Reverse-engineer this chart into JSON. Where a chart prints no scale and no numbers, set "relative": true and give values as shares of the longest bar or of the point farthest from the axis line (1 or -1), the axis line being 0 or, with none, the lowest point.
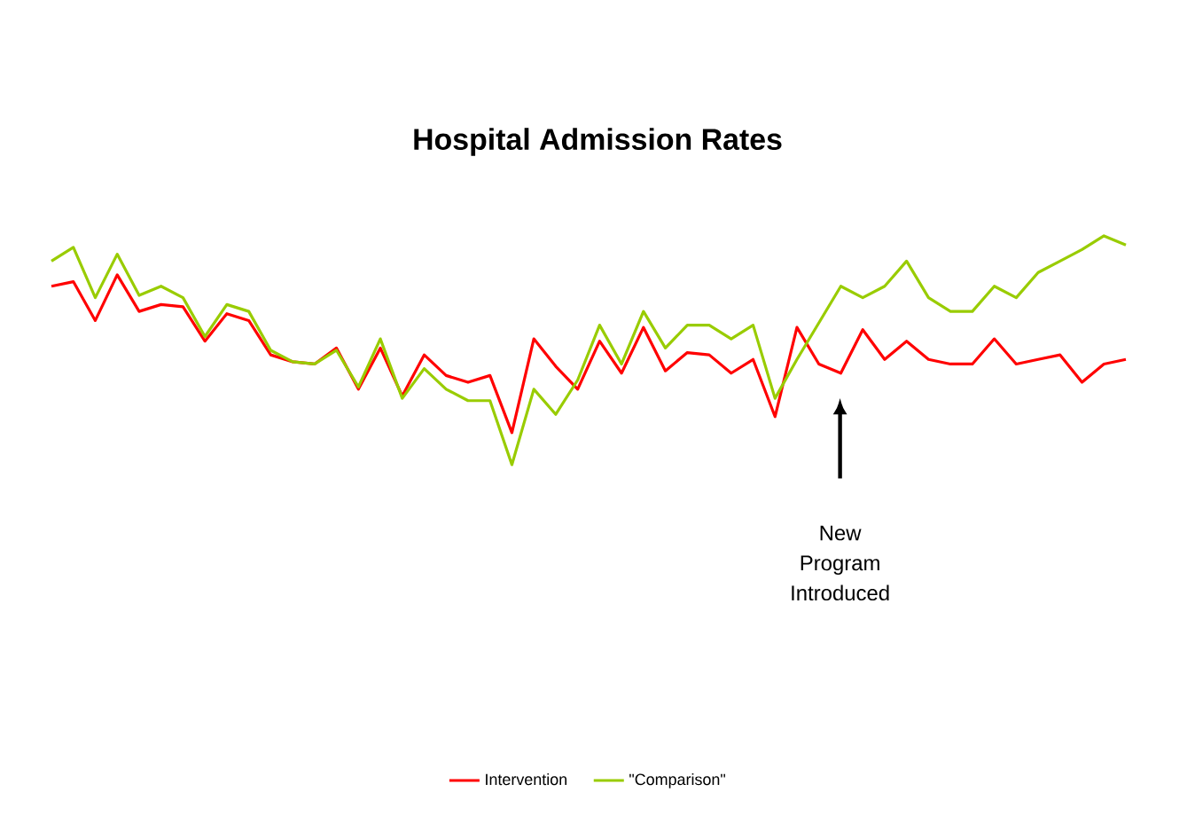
{
  "chart_data": {
    "type": "line",
    "title": "Hospital Admission Rates",
    "relative": true,
    "legend": "bottom",
    "categories": [
      null,
      null,
      null,
      null,
      null,
      null,
      null,
      null,
      null,
      null,
      null,
      null,
      null,
      null,
      null,
      null,
      null,
      null,
      null,
      null,
      null,
      null,
      null,
      null,
      null,
      null,
      null,
      null,
      null,
      null,
      null,
      null,
      null,
      null,
      null,
      null,
      null,
      null,
      null,
      null,
      null,
      null,
      null,
      null,
      null,
      null,
      null,
      null,
      null,
      null
    ],
    "series": [
      {
        "name": "Intervention",
        "color": "#ff0000",
        "values": [
          0.78,
          0.8,
          0.63,
          0.83,
          0.67,
          0.7,
          0.69,
          0.54,
          0.66,
          0.63,
          0.48,
          0.45,
          0.44,
          0.51,
          0.33,
          0.51,
          0.3,
          0.48,
          0.39,
          0.36,
          0.39,
          0.14,
          0.55,
          0.43,
          0.33,
          0.54,
          0.4,
          0.6,
          0.41,
          0.49,
          0.48,
          0.4,
          0.46,
          0.21,
          0.6,
          0.44,
          0.4,
          0.59,
          0.46,
          0.54,
          0.46,
          0.44,
          0.44,
          0.55,
          0.44,
          0.46,
          0.48,
          0.36,
          0.44,
          0.46
        ]
      },
      {
        "name": "\"Comparison\"",
        "color": "#99cc00",
        "values": [
          0.89,
          0.95,
          0.73,
          0.92,
          0.74,
          0.78,
          0.73,
          0.56,
          0.7,
          0.67,
          0.5,
          0.45,
          0.44,
          0.5,
          0.34,
          0.55,
          0.29,
          0.42,
          0.33,
          0.28,
          0.28,
          0,
          0.33,
          0.22,
          0.37,
          0.61,
          0.44,
          0.67,
          0.51,
          0.61,
          0.61,
          0.55,
          0.61,
          0.29,
          0.46,
          0.62,
          0.78,
          0.73,
          0.78,
          0.89,
          0.73,
          0.67,
          0.67,
          0.78,
          0.73,
          0.84,
          0.89,
          0.94,
          1,
          0.96
        ]
      }
    ],
    "annotations": [
      "New Program Introduced"
    ]
  }
}
